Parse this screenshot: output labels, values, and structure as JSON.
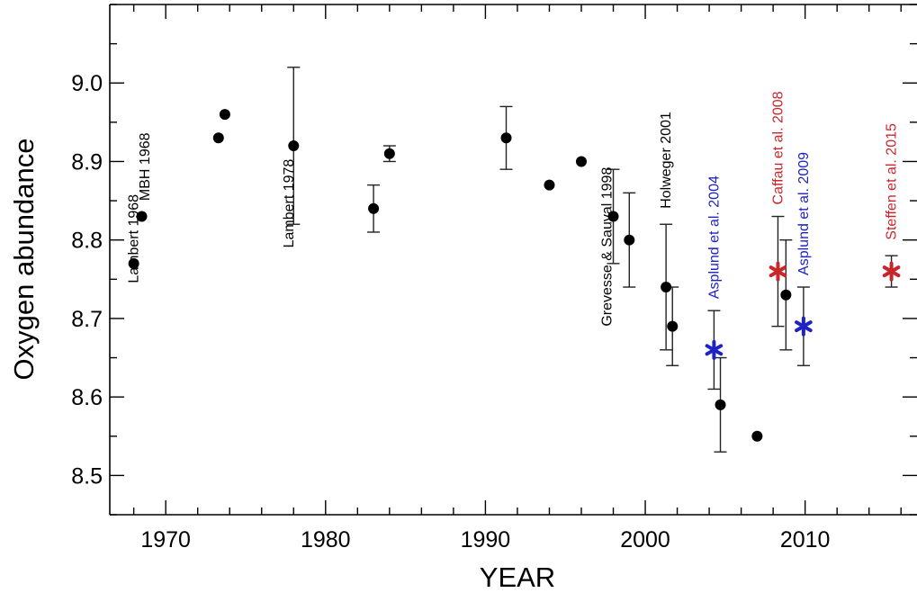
{
  "chart_data": {
    "type": "scatter",
    "title": "",
    "xlabel": "YEAR",
    "ylabel": "Oxygen abundance",
    "xlim": [
      1966.5,
      2017
    ],
    "ylim": [
      8.45,
      9.1
    ],
    "xticks": [
      1970,
      1980,
      1990,
      2000,
      2010
    ],
    "yticks": [
      8.5,
      8.6,
      8.7,
      8.8,
      8.9,
      9.0
    ],
    "ytick_labels": [
      "8.5",
      "8.6",
      "8.7",
      "8.8",
      "8.9",
      "9.0"
    ],
    "xtick_labels": [
      "1970",
      "1980",
      "1990",
      "2000",
      "2010"
    ],
    "grid": false,
    "colors": {
      "black": "#000000",
      "red": "#c8262b",
      "blue": "#1f23c4"
    },
    "points": [
      {
        "x": 1968.0,
        "y": 8.77,
        "marker": "circle",
        "color": "black"
      },
      {
        "x": 1968.5,
        "y": 8.83,
        "marker": "circle",
        "color": "black"
      },
      {
        "x": 1973.3,
        "y": 8.93,
        "marker": "circle",
        "color": "black"
      },
      {
        "x": 1973.7,
        "y": 8.96,
        "marker": "circle",
        "color": "black"
      },
      {
        "x": 1978.0,
        "y": 8.92,
        "err": 0.1,
        "marker": "circle",
        "color": "black"
      },
      {
        "x": 1983.0,
        "y": 8.84,
        "err": 0.03,
        "marker": "circle",
        "color": "black"
      },
      {
        "x": 1984.0,
        "y": 8.91,
        "err": 0.01,
        "marker": "circle",
        "color": "black"
      },
      {
        "x": 1991.3,
        "y": 8.93,
        "err": 0.04,
        "marker": "circle",
        "color": "black"
      },
      {
        "x": 1994.0,
        "y": 8.87,
        "marker": "circle",
        "color": "black"
      },
      {
        "x": 1996.0,
        "y": 8.9,
        "marker": "circle",
        "color": "black"
      },
      {
        "x": 1998.0,
        "y": 8.83,
        "err": 0.06,
        "marker": "circle",
        "color": "black"
      },
      {
        "x": 1999.0,
        "y": 8.8,
        "err": 0.06,
        "marker": "circle",
        "color": "black"
      },
      {
        "x": 2001.3,
        "y": 8.74,
        "err": 0.08,
        "marker": "circle",
        "color": "black"
      },
      {
        "x": 2001.7,
        "y": 8.69,
        "err": 0.05,
        "marker": "circle",
        "color": "black"
      },
      {
        "x": 2004.3,
        "y": 8.66,
        "err": 0.05,
        "marker": "star",
        "color": "blue"
      },
      {
        "x": 2004.7,
        "y": 8.59,
        "err": 0.06,
        "marker": "circle",
        "color": "black"
      },
      {
        "x": 2007.0,
        "y": 8.55,
        "marker": "circle",
        "color": "black"
      },
      {
        "x": 2008.3,
        "y": 8.76,
        "err": 0.07,
        "marker": "star",
        "color": "red"
      },
      {
        "x": 2008.8,
        "y": 8.73,
        "err": 0.07,
        "marker": "circle",
        "color": "black"
      },
      {
        "x": 2009.9,
        "y": 8.69,
        "err": 0.05,
        "marker": "star",
        "color": "blue"
      },
      {
        "x": 2015.4,
        "y": 8.76,
        "err": 0.02,
        "marker": "star",
        "color": "red"
      }
    ],
    "annotations": [
      {
        "text": "Lambert 1968",
        "x": 1968.0,
        "y": 8.745,
        "color": "black"
      },
      {
        "text": "MBH 1968",
        "x": 1968.7,
        "y": 8.85,
        "color": "black"
      },
      {
        "text": "Lambert 1978",
        "x": 1977.7,
        "y": 8.79,
        "color": "black"
      },
      {
        "text": "Grevesse & Sauval 1998",
        "x": 1997.6,
        "y": 8.69,
        "color": "black"
      },
      {
        "text": "Holweger 2001",
        "x": 2001.3,
        "y": 8.84,
        "color": "black"
      },
      {
        "text": "Asplund et al. 2004",
        "x": 2004.3,
        "y": 8.725,
        "color": "blue"
      },
      {
        "text": "Caffau et al. 2008",
        "x": 2008.3,
        "y": 8.845,
        "color": "red"
      },
      {
        "text": "Asplund et al. 2009",
        "x": 2009.9,
        "y": 8.755,
        "color": "blue"
      },
      {
        "text": "Steffen et al. 2015",
        "x": 2015.4,
        "y": 8.8,
        "color": "red"
      }
    ]
  }
}
